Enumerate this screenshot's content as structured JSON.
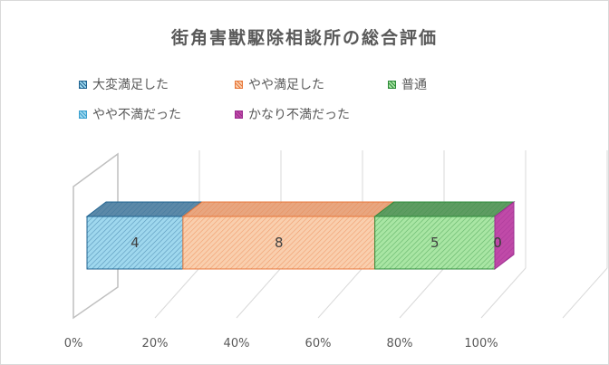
{
  "chart_data": {
    "type": "bar",
    "subtype": "3d-100%-stacked-horizontal",
    "title": "街角害獣駆除相談所の総合評価",
    "categories": [
      ""
    ],
    "series": [
      {
        "name": "大変満足した",
        "values": [
          4
        ],
        "color": "#1f6391",
        "front": "#9fd8ee",
        "top": "#5c89a8"
      },
      {
        "name": "やや満足した",
        "values": [
          8
        ],
        "color": "#e8773a",
        "front": "#f9cfae",
        "top": "#e8a680"
      },
      {
        "name": "普通",
        "values": [
          5
        ],
        "color": "#2e8b3a",
        "front": "#a9e6a4",
        "top": "#5e9c62"
      },
      {
        "name": "やや不満だった",
        "values": [
          0
        ],
        "color": "#3aa0d0",
        "front": "#9fd8ee",
        "top": "#7cc0de"
      },
      {
        "name": "かなり不満だった",
        "values": [
          0
        ],
        "color": "#9b2d8f",
        "front": "#c04aa8",
        "top": "#b466a8"
      }
    ],
    "x_ticks": [
      "0%",
      "20%",
      "40%",
      "60%",
      "80%",
      "100%"
    ],
    "xlim": [
      0,
      100
    ],
    "grid": true,
    "legend": "top"
  }
}
